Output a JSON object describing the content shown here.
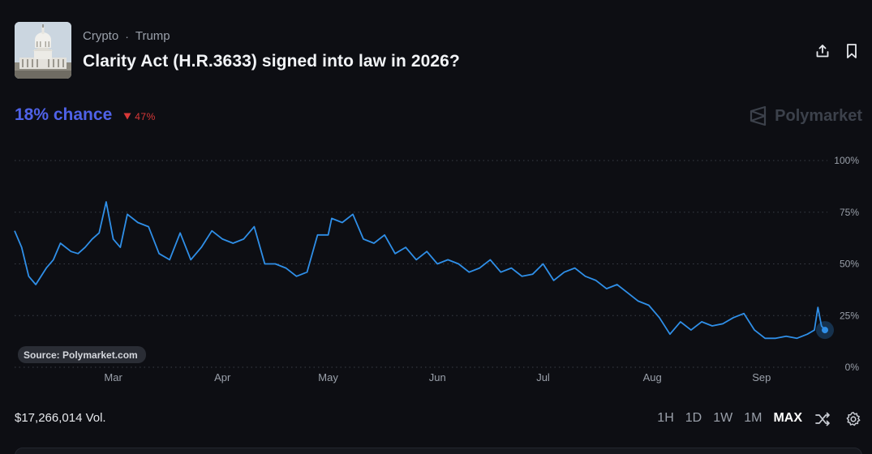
{
  "market": {
    "category": "Crypto",
    "subcategory": "Trump",
    "separator": "·",
    "title": "Clarity Act (H.R.3633) signed into law in 2026?"
  },
  "odds": {
    "chance_value": "18%",
    "chance_label": "chance",
    "change": "47%",
    "change_direction": "down",
    "color": "#4f62e8",
    "change_color": "#d93838"
  },
  "brand": {
    "name": "Polymarket"
  },
  "source_label": "Source: Polymarket.com",
  "volume": {
    "text": "$17,266,014 Vol."
  },
  "ranges": [
    "1H",
    "1D",
    "1W",
    "1M",
    "MAX"
  ],
  "active_range": "MAX",
  "icons": {
    "share": "share-icon",
    "bookmark": "bookmark-icon",
    "swap": "shuffle-icon",
    "settings": "gear-icon"
  },
  "chart_data": {
    "type": "line",
    "series": [
      {
        "color": "#2f8fe8",
        "x": [
          "2026-02-01",
          "2026-02-03",
          "2026-02-05",
          "2026-02-07",
          "2026-02-10",
          "2026-02-12",
          "2026-02-14",
          "2026-02-17",
          "2026-02-19",
          "2026-02-21",
          "2026-02-23",
          "2026-02-25",
          "2026-02-27",
          "2026-03-01",
          "2026-03-03",
          "2026-03-05",
          "2026-03-08",
          "2026-03-11",
          "2026-03-14",
          "2026-03-17",
          "2026-03-20",
          "2026-03-23",
          "2026-03-26",
          "2026-03-29",
          "2026-04-01",
          "2026-04-04",
          "2026-04-07",
          "2026-04-10",
          "2026-04-13",
          "2026-04-16",
          "2026-04-19",
          "2026-04-22",
          "2026-04-25",
          "2026-04-28",
          "2026-05-01",
          "2026-05-02",
          "2026-05-05",
          "2026-05-08",
          "2026-05-11",
          "2026-05-14",
          "2026-05-17",
          "2026-05-20",
          "2026-05-23",
          "2026-05-26",
          "2026-05-29",
          "2026-06-01",
          "2026-06-04",
          "2026-06-07",
          "2026-06-10",
          "2026-06-13",
          "2026-06-16",
          "2026-06-19",
          "2026-06-22",
          "2026-06-25",
          "2026-06-28",
          "2026-07-01",
          "2026-07-04",
          "2026-07-07",
          "2026-07-10",
          "2026-07-13",
          "2026-07-16",
          "2026-07-19",
          "2026-07-22",
          "2026-07-25",
          "2026-07-28",
          "2026-07-31",
          "2026-08-03",
          "2026-08-06",
          "2026-08-09",
          "2026-08-12",
          "2026-08-15",
          "2026-08-18",
          "2026-08-21",
          "2026-08-24",
          "2026-08-27",
          "2026-08-30",
          "2026-09-02",
          "2026-09-05",
          "2026-09-08",
          "2026-09-11",
          "2026-09-14",
          "2026-09-16",
          "2026-09-17",
          "2026-09-18",
          "2026-09-19"
        ],
        "y": [
          66,
          58,
          44,
          40,
          48,
          52,
          60,
          56,
          55,
          58,
          62,
          65,
          80,
          62,
          58,
          74,
          70,
          68,
          55,
          52,
          65,
          52,
          58,
          66,
          62,
          60,
          62,
          68,
          50,
          50,
          48,
          44,
          46,
          64,
          64,
          72,
          70,
          74,
          62,
          60,
          64,
          55,
          58,
          52,
          56,
          50,
          52,
          50,
          46,
          48,
          52,
          46,
          48,
          44,
          45,
          50,
          42,
          46,
          48,
          44,
          42,
          38,
          40,
          36,
          32,
          30,
          24,
          16,
          22,
          18,
          22,
          20,
          21,
          24,
          26,
          18,
          14,
          14,
          15,
          14,
          16,
          18,
          29,
          20,
          18
        ]
      }
    ],
    "x_ticks": [
      "Mar",
      "Apr",
      "May",
      "Jun",
      "Jul",
      "Aug",
      "Sep"
    ],
    "y_ticks": [
      "0%",
      "25%",
      "50%",
      "75%",
      "100%"
    ],
    "ylim": [
      0,
      100
    ],
    "grid": true,
    "last_point_marker": true
  }
}
